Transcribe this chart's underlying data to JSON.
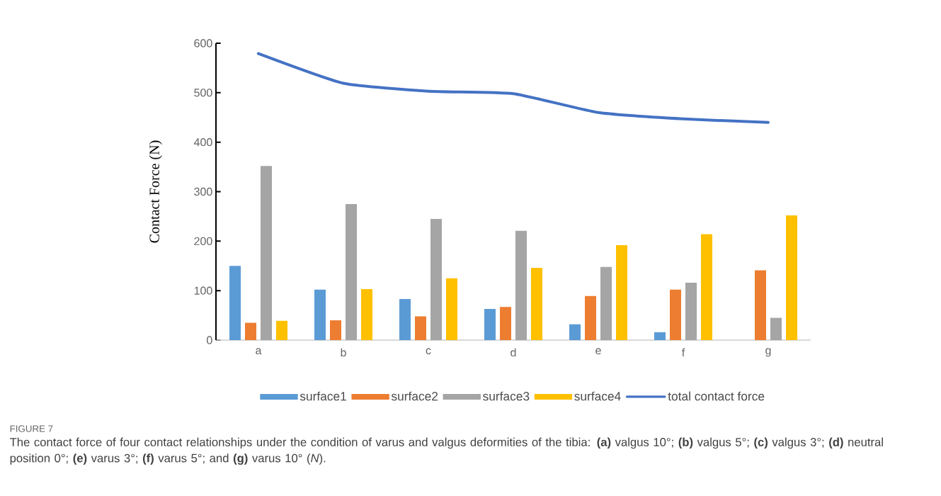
{
  "chart_data": {
    "type": "bar",
    "categories": [
      "a",
      "b",
      "c",
      "d",
      "e",
      "f",
      "g"
    ],
    "ylabel": "Contact Force (N)",
    "ylim": [
      0,
      600
    ],
    "yticks": [
      0,
      100,
      200,
      300,
      400,
      500,
      600
    ],
    "legend": "bottom",
    "series": [
      {
        "name": "surface1",
        "color": "#5b9bd5",
        "values": [
          150,
          102,
          83,
          63,
          32,
          16,
          0
        ]
      },
      {
        "name": "surface2",
        "color": "#ed7d31",
        "values": [
          35,
          40,
          48,
          67,
          89,
          102,
          141
        ]
      },
      {
        "name": "surface3",
        "color": "#a5a5a5",
        "values": [
          352,
          275,
          245,
          221,
          148,
          116,
          45
        ]
      },
      {
        "name": "surface4",
        "color": "#ffc000",
        "values": [
          39,
          103,
          125,
          146,
          192,
          214,
          252
        ]
      },
      {
        "name": "total contact force",
        "type": "line",
        "color": "#4472c4",
        "values": [
          579,
          519,
          503,
          498,
          460,
          447,
          440
        ]
      }
    ],
    "annotations": [
      "FIGURE 7",
      "The contact force of four contact relationships under the condition of varus and valgus deformities of the tibia: **(a)** valgus 10°; **(b)** valgus 5°; **(c)** valgus 3°; **(d)** neutral position 0°; **(e)** varus 3°; **(f)** varus 5°; and **(g)** varus 10° (*N*)."
    ]
  }
}
